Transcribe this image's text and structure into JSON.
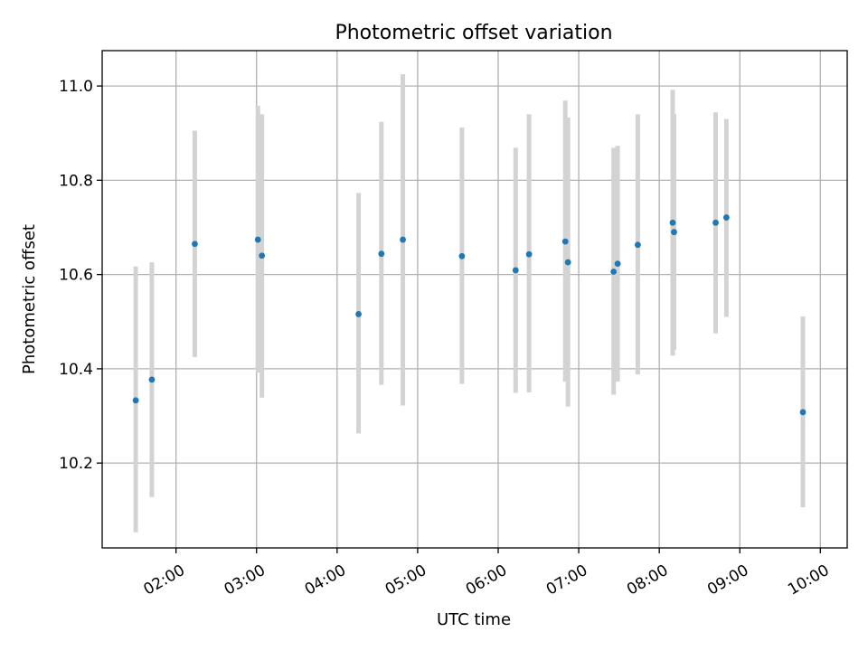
{
  "chart_data": {
    "type": "scatter",
    "title": "Photometric offset variation",
    "xlabel": "UTC time",
    "ylabel": "Photometric offset",
    "xlim": [
      "01:05",
      "10:20"
    ],
    "ylim": [
      10.02,
      11.075
    ],
    "x_ticks": [
      "02:00",
      "03:00",
      "04:00",
      "05:00",
      "06:00",
      "07:00",
      "08:00",
      "09:00",
      "10:00"
    ],
    "y_ticks": [
      "10.2",
      "10.4",
      "10.6",
      "10.8",
      "11.0"
    ],
    "grid": true,
    "colors": {
      "point": "#1f77b4",
      "errorbar": "#d3d3d3",
      "grid": "#b0b0b0"
    },
    "points": [
      {
        "x": "01:30",
        "y": 10.333,
        "ylow": 10.053,
        "yhigh": 10.617
      },
      {
        "x": "01:42",
        "y": 10.377,
        "ylow": 10.128,
        "yhigh": 10.626
      },
      {
        "x": "02:14",
        "y": 10.665,
        "ylow": 10.425,
        "yhigh": 10.905
      },
      {
        "x": "03:01",
        "y": 10.674,
        "ylow": 10.392,
        "yhigh": 10.958
      },
      {
        "x": "03:04",
        "y": 10.64,
        "ylow": 10.339,
        "yhigh": 10.94
      },
      {
        "x": "04:16",
        "y": 10.516,
        "ylow": 10.263,
        "yhigh": 10.773
      },
      {
        "x": "04:33",
        "y": 10.644,
        "ylow": 10.366,
        "yhigh": 10.924
      },
      {
        "x": "04:49",
        "y": 10.674,
        "ylow": 10.322,
        "yhigh": 11.025
      },
      {
        "x": "05:33",
        "y": 10.639,
        "ylow": 10.368,
        "yhigh": 10.912
      },
      {
        "x": "06:13",
        "y": 10.609,
        "ylow": 10.349,
        "yhigh": 10.869
      },
      {
        "x": "06:23",
        "y": 10.643,
        "ylow": 10.35,
        "yhigh": 10.94
      },
      {
        "x": "06:50",
        "y": 10.67,
        "ylow": 10.373,
        "yhigh": 10.969
      },
      {
        "x": "06:52",
        "y": 10.626,
        "ylow": 10.32,
        "yhigh": 10.933
      },
      {
        "x": "07:26",
        "y": 10.606,
        "ylow": 10.345,
        "yhigh": 10.869
      },
      {
        "x": "07:29",
        "y": 10.623,
        "ylow": 10.373,
        "yhigh": 10.873
      },
      {
        "x": "07:44",
        "y": 10.663,
        "ylow": 10.388,
        "yhigh": 10.94
      },
      {
        "x": "08:10",
        "y": 10.71,
        "ylow": 10.428,
        "yhigh": 10.992
      },
      {
        "x": "08:11",
        "y": 10.69,
        "ylow": 10.44,
        "yhigh": 10.94
      },
      {
        "x": "08:42",
        "y": 10.71,
        "ylow": 10.475,
        "yhigh": 10.944
      },
      {
        "x": "08:50",
        "y": 10.721,
        "ylow": 10.51,
        "yhigh": 10.93
      },
      {
        "x": "09:47",
        "y": 10.308,
        "ylow": 10.106,
        "yhigh": 10.511
      }
    ]
  }
}
